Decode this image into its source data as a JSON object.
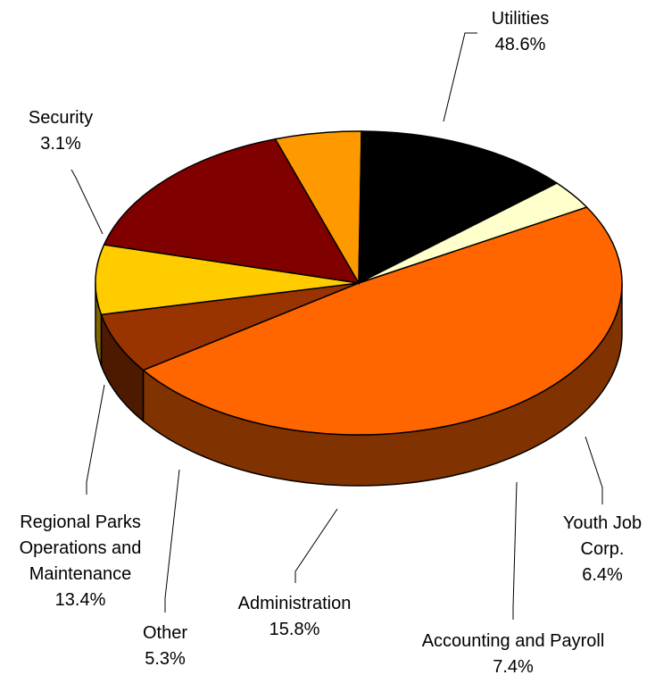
{
  "chart_data": {
    "type": "pie",
    "title": "",
    "three_d": true,
    "legend": "none",
    "slices": [
      {
        "label": "Utilities",
        "value": 48.6,
        "value_label": "48.6%",
        "color": "#FF6600"
      },
      {
        "label": "Youth Job Corp.",
        "value": 6.4,
        "value_label": "6.4%",
        "color": "#993300"
      },
      {
        "label": "Accounting and Payroll",
        "value": 7.4,
        "value_label": "7.4%",
        "color": "#FFCC00"
      },
      {
        "label": "Administration",
        "value": 15.8,
        "value_label": "15.8%",
        "color": "#800000"
      },
      {
        "label": "Other",
        "value": 5.3,
        "value_label": "5.3%",
        "color": "#FF9900"
      },
      {
        "label": "Regional Parks Operations and Maintenance",
        "value": 13.4,
        "value_label": "13.4%",
        "color": "#000000"
      },
      {
        "label": "Security",
        "value": 3.1,
        "value_label": "3.1%",
        "color": "#FFFFCC"
      }
    ]
  }
}
